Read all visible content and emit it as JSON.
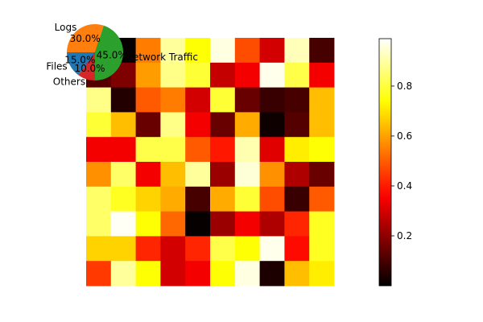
{
  "chart_data": [
    {
      "type": "heatmap",
      "colormap": "hot",
      "rows": 10,
      "cols": 10,
      "values": [
        [
          0.0,
          0.01,
          0.55,
          0.9,
          0.75,
          0.97,
          0.48,
          0.3,
          0.93,
          0.1
        ],
        [
          0.12,
          0.18,
          0.6,
          0.88,
          0.8,
          0.28,
          0.35,
          0.98,
          0.82,
          0.35
        ],
        [
          0.88,
          0.05,
          0.5,
          0.55,
          0.3,
          0.8,
          0.15,
          0.08,
          0.1,
          0.65
        ],
        [
          0.8,
          0.65,
          0.15,
          0.88,
          0.35,
          0.15,
          0.62,
          0.02,
          0.12,
          0.65
        ],
        [
          0.35,
          0.35,
          0.82,
          0.82,
          0.5,
          0.4,
          0.92,
          0.32,
          0.72,
          0.75
        ],
        [
          0.58,
          0.85,
          0.35,
          0.65,
          0.9,
          0.22,
          0.96,
          0.58,
          0.25,
          0.15
        ],
        [
          0.85,
          0.78,
          0.68,
          0.62,
          0.1,
          0.62,
          0.8,
          0.48,
          0.08,
          0.5
        ],
        [
          0.85,
          0.99,
          0.75,
          0.52,
          0.01,
          0.22,
          0.35,
          0.25,
          0.42,
          0.78
        ],
        [
          0.68,
          0.68,
          0.42,
          0.3,
          0.42,
          0.82,
          0.75,
          0.98,
          0.38,
          0.78
        ],
        [
          0.45,
          0.9,
          0.75,
          0.3,
          0.35,
          0.75,
          0.97,
          0.04,
          0.65,
          0.72
        ]
      ],
      "colorbar": {
        "range": [
          0.0,
          0.99
        ],
        "ticks": [
          0.2,
          0.4,
          0.6,
          0.8
        ]
      }
    },
    {
      "type": "pie",
      "categories": [
        "Network Traffic",
        "Logs",
        "Files",
        "Others"
      ],
      "values": [
        45.0,
        30.0,
        15.0,
        10.0
      ],
      "labels_pct": [
        "45.0%",
        "30.0%",
        "15.0%",
        "10.0%"
      ],
      "colors": [
        "#2ca02c",
        "#ff7f0e",
        "#1f77b4",
        "#d62728"
      ],
      "start_angle_deg": -90
    }
  ]
}
